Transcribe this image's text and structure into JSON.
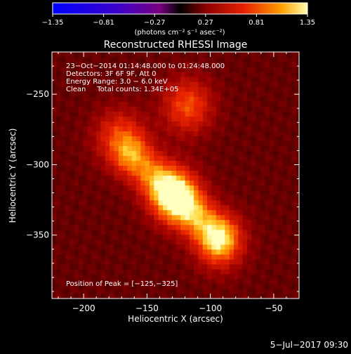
{
  "chart_data": {
    "type": "heatmap",
    "title": "Reconstructed RHESSI Image",
    "xlabel": "Heliocentric X (arcsec)",
    "ylabel": "Heliocentric Y (arcsec)",
    "xlim": [
      -225,
      -30
    ],
    "ylim": [
      -395,
      -220
    ],
    "x_ticks": [
      -200,
      -150,
      -100,
      -50
    ],
    "y_ticks": [
      -250,
      -300,
      -350
    ],
    "x_tick_labels": [
      "−200",
      "−150",
      "−100",
      "−50"
    ],
    "y_tick_labels": [
      "−250",
      "−300",
      "−350"
    ],
    "colorbar": {
      "min": -1.35,
      "max": 1.35,
      "ticks": [
        -1.35,
        -0.81,
        -0.27,
        0.27,
        0.81,
        1.35
      ],
      "tick_labels": [
        "−1.35",
        "−0.81",
        "−0.27",
        "0.27",
        "0.81",
        "1.35"
      ],
      "unit_label": "(photons cm⁻² s⁻¹ asec⁻²)"
    },
    "annotations": [
      "23−Oct−2014 01:14:48.000 to 01:24:48.000",
      "Detectors: 3F 6F 9F, Att 0",
      "Energy Range: 3.0 − 6.0 keV",
      "Clean     Total counts: 1.34E+05"
    ],
    "peak_label": "Position of Peak = [−125,−325]",
    "peak": [
      -125,
      -325
    ],
    "sources": [
      {
        "x": -128,
        "y": -322,
        "amp": 1.35
      },
      {
        "x": -118,
        "y": -258,
        "amp": 1.0
      },
      {
        "x": -172,
        "y": -280,
        "amp": 0.9
      },
      {
        "x": -92,
        "y": -355,
        "amp": 0.9
      }
    ],
    "ridge": {
      "from": [
        -160,
        -295
      ],
      "to": [
        -95,
        -350
      ],
      "amp": 1.1
    }
  },
  "footer": {
    "date": "5−Jul−2017 09:30"
  }
}
